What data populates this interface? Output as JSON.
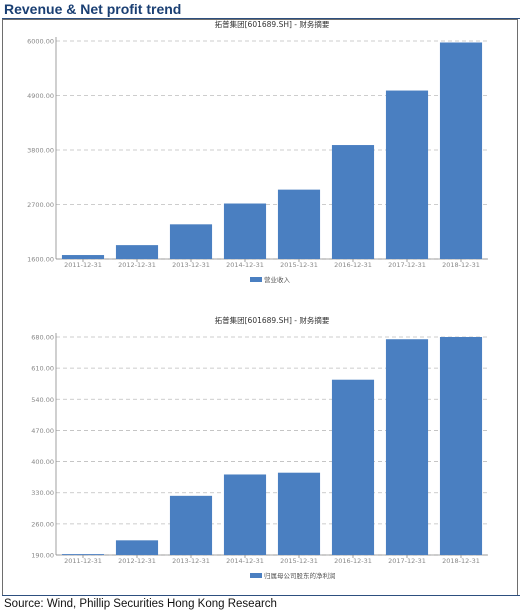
{
  "heading": "Revenue & Net profit trend",
  "source": "Source: Wind, Phillip Securities Hong Kong Research",
  "colors": {
    "bar": "#4a7fc1",
    "heading": "#1a3f73",
    "grid": "#bdbdbd",
    "tick": "#888888"
  },
  "chart_data": [
    {
      "type": "bar",
      "title": "拓普集团[601689.SH] - 财务摘要",
      "categories": [
        "2011-12-31",
        "2012-12-31",
        "2013-12-31",
        "2014-12-31",
        "2015-12-31",
        "2016-12-31",
        "2017-12-31",
        "2018-12-31"
      ],
      "series": [
        {
          "name": "营业收入",
          "values": [
            1680,
            1880,
            2300,
            2720,
            3000,
            3900,
            5000,
            5970
          ]
        }
      ],
      "yticks": [
        "1600.00",
        "2700.00",
        "3800.00",
        "4900.00",
        "6000.00"
      ],
      "ylim": [
        1600,
        6000
      ],
      "grid": true,
      "legend_position": "bottom"
    },
    {
      "type": "bar",
      "title": "拓普集团[601689.SH] - 财务摘要",
      "categories": [
        "2011-12-31",
        "2012-12-31",
        "2013-12-31",
        "2014-12-31",
        "2015-12-31",
        "2016-12-31",
        "2017-12-31",
        "2018-12-31"
      ],
      "series": [
        {
          "name": "归属母公司股东的净利润",
          "values": [
            192,
            223,
            323,
            371,
            375,
            584,
            675,
            680
          ]
        }
      ],
      "yticks": [
        "190.00",
        "260.00",
        "330.00",
        "400.00",
        "470.00",
        "540.00",
        "610.00",
        "680.00"
      ],
      "ylim": [
        190,
        680
      ],
      "grid": true,
      "legend_position": "bottom"
    }
  ]
}
